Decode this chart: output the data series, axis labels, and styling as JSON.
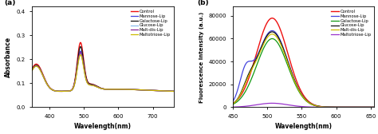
{
  "panel_a": {
    "label": "(a)",
    "xlabel": "Wavelength(nm)",
    "ylabel": "Absorbance",
    "xlim": [
      350,
      760
    ],
    "ylim": [
      0.0,
      0.42
    ],
    "yticks": [
      0.0,
      0.1,
      0.2,
      0.3,
      0.4
    ],
    "xticks": [
      400,
      500,
      600,
      700
    ],
    "series": [
      {
        "name": "Control",
        "color": "#ee1111",
        "lw": 1.0
      },
      {
        "name": "Mannose-Lip",
        "color": "#4444dd",
        "lw": 0.9
      },
      {
        "name": "Galactose-Lip",
        "color": "#111111",
        "lw": 0.9
      },
      {
        "name": "Glucose-Lip",
        "color": "#88bbee",
        "lw": 0.9
      },
      {
        "name": "Malt-dis-Lip",
        "color": "#882299",
        "lw": 0.9
      },
      {
        "name": "Maltotriose-Lip",
        "color": "#ccbb00",
        "lw": 0.9
      }
    ]
  },
  "panel_b": {
    "label": "(b)",
    "xlabel": "Wavelength(nm)",
    "ylabel": "Fluorescence Intensity (a.u.)",
    "xlim": [
      450,
      655
    ],
    "ylim": [
      0,
      88000
    ],
    "yticks": [
      0,
      20000,
      40000,
      60000,
      80000
    ],
    "xticks": [
      450,
      500,
      550,
      600,
      650
    ],
    "series": [
      {
        "name": "Control",
        "color": "#ee1111",
        "lw": 1.0
      },
      {
        "name": "Mannose-Lip",
        "color": "#4444dd",
        "lw": 0.9
      },
      {
        "name": "Galactose-Lip",
        "color": "#119911",
        "lw": 0.9
      },
      {
        "name": "Glucose-Lip",
        "color": "#111111",
        "lw": 0.9
      },
      {
        "name": "Malt-dis-Lip",
        "color": "#ccbb00",
        "lw": 0.9
      },
      {
        "name": "Maltotriose-Lip",
        "color": "#9933cc",
        "lw": 0.9
      }
    ]
  },
  "bg_color": "#ffffff",
  "figsize": [
    4.74,
    1.68
  ],
  "dpi": 100
}
